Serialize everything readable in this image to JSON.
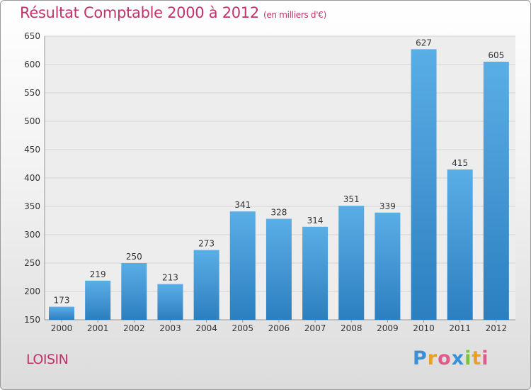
{
  "chart_data": {
    "type": "bar",
    "title": "Résultat Comptable 2000 à 2012",
    "subtitle": "(en milliers d'€)",
    "categories": [
      "2000",
      "2001",
      "2002",
      "2003",
      "2004",
      "2005",
      "2006",
      "2007",
      "2008",
      "2009",
      "2010",
      "2011",
      "2012"
    ],
    "values": [
      173,
      219,
      250,
      213,
      273,
      341,
      328,
      314,
      351,
      339,
      627,
      415,
      605
    ],
    "data_labels": [
      "173",
      "219",
      "250",
      "213",
      "273",
      "341",
      "328",
      "314",
      "351",
      "339",
      "627",
      "415",
      "605"
    ],
    "ylim": [
      150,
      650
    ],
    "yticks": [
      150,
      200,
      250,
      300,
      350,
      400,
      450,
      500,
      550,
      600,
      650
    ],
    "ytick_labels": [
      "150",
      "200",
      "250",
      "300",
      "350",
      "400",
      "450",
      "500",
      "550",
      "600",
      "650"
    ],
    "grid": true,
    "xlabel": "",
    "ylabel": "",
    "bar_color_light": "#5aaee6",
    "bar_color_dark": "#2c7fbf"
  },
  "commune": "LOISIN",
  "logo": {
    "letters": [
      "P",
      "r",
      "o",
      "x",
      "i",
      "t",
      "i"
    ],
    "colors": [
      "#3a8fd6",
      "#e8a02a",
      "#e05a8a",
      "#3a8fd6",
      "#7cc23a",
      "#e8a02a",
      "#e05a8a"
    ]
  },
  "colors": {
    "title": "#c0336b"
  }
}
